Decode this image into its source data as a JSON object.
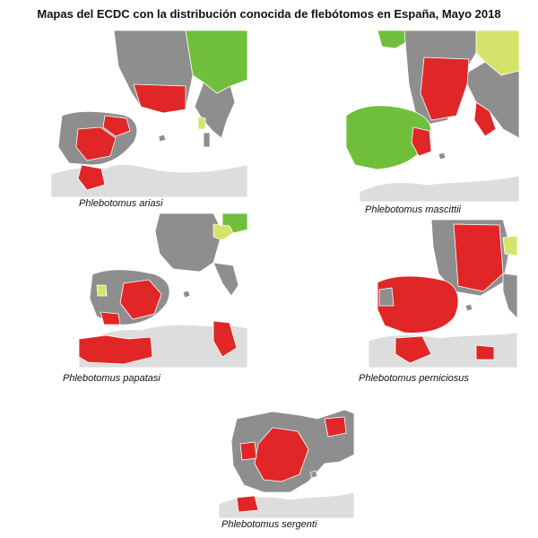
{
  "title": "Mapas del ECDC con la distribución conocida de flebótomos en España, Mayo 2018",
  "colors": {
    "present": "#e02626",
    "introduced": "#d6e36b",
    "absent": "#6fbf3a",
    "no_data": "#8e8e8e",
    "not_included": "#dddddd",
    "sea": "#ffffff",
    "border": "#ffffff"
  },
  "maps": [
    {
      "id": "ariasi",
      "caption": "Phlebotomus ariasi"
    },
    {
      "id": "mascittii",
      "caption": "Phlebotomus mascittii"
    },
    {
      "id": "papatasi",
      "caption": "Phlebotomus papatasi"
    },
    {
      "id": "perniciosus",
      "caption": "Phlebotomus perniciosus"
    },
    {
      "id": "sergenti",
      "caption": "Phlebotomus sergenti"
    }
  ]
}
